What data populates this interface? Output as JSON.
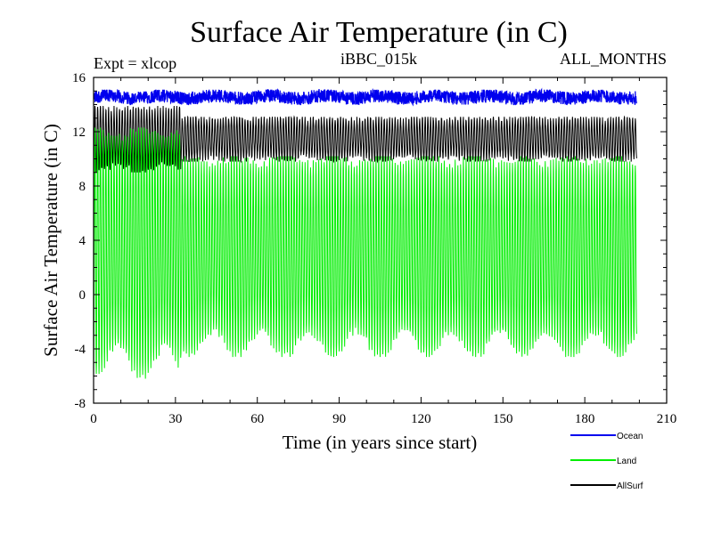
{
  "chart_data": {
    "type": "line",
    "title": "Surface Air Temperature (in C)",
    "experiment_label": "Expt = xlcop",
    "run_label": "iBBC_015k",
    "months_label": "ALL_MONTHS",
    "xlabel": "Time (in years since start)",
    "ylabel": "Surface Air Temperature (in C)",
    "xlim": [
      0,
      210
    ],
    "ylim": [
      -8,
      16
    ],
    "xticks": [
      0,
      30,
      60,
      90,
      120,
      150,
      180,
      210
    ],
    "yticks": [
      -8,
      -4,
      0,
      4,
      8,
      12,
      16
    ],
    "x_minor_step": 10,
    "y_minor_step": 1,
    "samples_per_year": 12,
    "x_end": 199,
    "series": [
      {
        "name": "Land",
        "color": "#00ee00",
        "seasonal_range_early": {
          "years": [
            0,
            32
          ],
          "min": -6.2,
          "max": 12.3
        },
        "seasonal_range_late": {
          "years": [
            32,
            199
          ],
          "min": -4.6,
          "max": 10.2
        },
        "summer_peak_range": [
          9.0,
          10.8
        ],
        "winter_trough_range": [
          -5.5,
          -1.0
        ]
      },
      {
        "name": "AllSurf",
        "color": "#000000",
        "seasonal_range_early": {
          "years": [
            0,
            32
          ],
          "min": 9.0,
          "max": 13.9
        },
        "seasonal_range_late": {
          "years": [
            32,
            199
          ],
          "min": 9.8,
          "max": 13.1
        },
        "summer_peak_range": [
          12.4,
          13.2
        ]
      },
      {
        "name": "Ocean",
        "color": "#0000ee",
        "range": {
          "min": 14.0,
          "max": 15.1
        },
        "mean": 14.5
      }
    ],
    "legend": {
      "placement": "bottom-right",
      "entries": [
        {
          "name": "Ocean",
          "color": "#0000ee"
        },
        {
          "name": "Land",
          "color": "#00ee00"
        },
        {
          "name": "AllSurf",
          "color": "#000000"
        }
      ]
    }
  }
}
